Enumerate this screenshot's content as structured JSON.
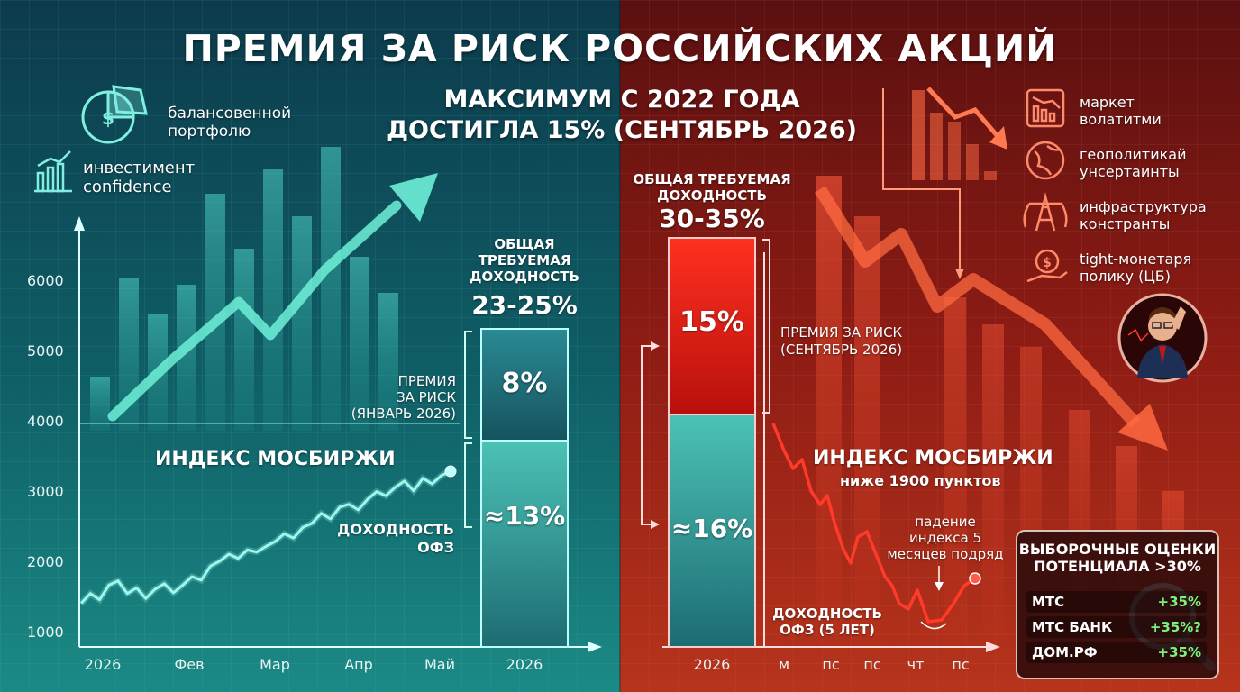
{
  "title": "ПРЕМИЯ ЗА РИСК РОССИЙСКИХ АКЦИЙ",
  "subtitle_line1": "МАКСИМУМ С 2022 ГОДА",
  "subtitle_line2": "ДОСТИГЛА 15% (СЕНТЯБРЬ 2026)",
  "left": {
    "icon_labels": [
      {
        "icon": "pie-chart-icon",
        "line1": "балансовенной",
        "line2": "портфолю"
      },
      {
        "icon": "bar-growth-icon",
        "line1": "инвестимент",
        "line2": "confidence"
      }
    ],
    "index_label": "ИНДЕКС МОСБИРЖИ",
    "bar_title_line1": "ОБЩАЯ",
    "bar_title_line2": "ТРЕБУЕМАЯ",
    "bar_title_line3": "ДОХОДНОСТЬ",
    "bar_total": "23-25%",
    "premium_label_line1": "ПРЕМИЯ",
    "premium_label_line2": "ЗА РИСК",
    "premium_label_line3": "(ЯНВАРЬ 2026)",
    "premium_value": "8%",
    "ofz_label_line1": "ДОХОДНОСТЬ",
    "ofz_label_line2": "ОФЗ",
    "ofz_value": "≈13%",
    "bar_x_label": "2026",
    "colors": {
      "accent": "#6ef0d8",
      "premium": "#1f6f7a",
      "ofz": "#3fb0a6"
    }
  },
  "right": {
    "icon_labels": [
      {
        "icon": "falling-chart-icon",
        "line1": "маркет",
        "line2": "волатитми"
      },
      {
        "icon": "globe-icon",
        "line1": "геополитикай",
        "line2": "унсертаинты"
      },
      {
        "icon": "power-tower-icon",
        "line1": "инфраструктура",
        "line2": "констранты"
      },
      {
        "icon": "money-hand-icon",
        "line1": "tight-монетаря",
        "line2": "полику (ЦБ)"
      }
    ],
    "bar_title_line1": "ОБЩАЯ ТРЕБУЕМАЯ",
    "bar_title_line2": "ДОХОДНОСТЬ",
    "bar_total": "30-35%",
    "premium_value": "15%",
    "premium_label_line1": "ПРЕМИЯ ЗА РИСК",
    "premium_label_line2": "(СЕНТЯБРЬ 2026)",
    "ofz_value": "≈16%",
    "ofz_label_line1": "ДОХОДНОСТЬ",
    "ofz_label_line2": "ОФЗ (5 ЛЕТ)",
    "index_label": "ИНДЕКС МОСБИРЖИ",
    "index_sublabel": "ниже 1900 пунктов",
    "drop_label_line1": "падение",
    "drop_label_line2": "индекса 5",
    "drop_label_line3": "месяцев подряд",
    "bar_x_label": "2026",
    "x_ticks": [
      "м",
      "пс",
      "пс",
      "чт",
      "пс"
    ],
    "colors": {
      "premium": "#e0241c",
      "ofz": "#3fb0a6"
    }
  },
  "panel": {
    "title_line1": "ВЫБОРОЧНЫЕ ОЦЕНКИ",
    "title_line2": "ПОТЕНЦИАЛА >30%",
    "rows": [
      {
        "name": "МТС",
        "value": "+35%"
      },
      {
        "name": "МТС БАНК",
        "value": "+35%?"
      },
      {
        "name": "ДОМ.РФ",
        "value": "+35%"
      }
    ]
  },
  "chart_data": {
    "type": "line",
    "series_name": "",
    "x_ticks": [
      "2026",
      "Фев",
      "Мар",
      "Апр",
      "Май"
    ],
    "y_ticks": [
      1000,
      2000,
      3000,
      4000,
      5000,
      6000
    ],
    "ylim": [
      800,
      6800
    ],
    "x": [
      0,
      1,
      2,
      3,
      4,
      5,
      6,
      7,
      8,
      9,
      10,
      11,
      12,
      13,
      14,
      15,
      16,
      17,
      18,
      19,
      20,
      21,
      22,
      23,
      24,
      25,
      26,
      27,
      28,
      29,
      30,
      31,
      32,
      33,
      34,
      35,
      36,
      37,
      38,
      39,
      40
    ],
    "values": [
      1420,
      1560,
      1470,
      1680,
      1740,
      1560,
      1640,
      1490,
      1620,
      1700,
      1570,
      1680,
      1800,
      1750,
      1950,
      2020,
      2120,
      2060,
      2180,
      2150,
      2230,
      2300,
      2410,
      2350,
      2500,
      2560,
      2700,
      2620,
      2790,
      2830,
      2750,
      2900,
      3010,
      2950,
      3070,
      3160,
      3020,
      3200,
      3120,
      3240,
      3300
    ]
  }
}
